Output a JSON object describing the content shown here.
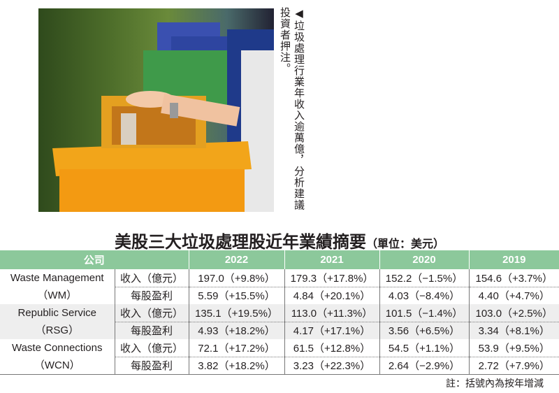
{
  "photo": {
    "description_icon": "recycling-bins-photo"
  },
  "caption": "◀垃圾處理行業年收入逾萬億，分析建議投資者押注。",
  "title": "美股三大垃圾處理股近年業績摘要",
  "unit": "（單位：美元）",
  "table": {
    "headers": [
      "公司",
      "2022",
      "2021",
      "2020",
      "2019"
    ],
    "rows": [
      {
        "company": "Waste Management",
        "ticker": "（WM）",
        "metrics": [
          {
            "label": "收入（億元）",
            "values": [
              "197.0（+9.8%）",
              "179.3（+17.8%）",
              "152.2（−1.5%）",
              "154.6（+3.7%）"
            ]
          },
          {
            "label": "每股盈利",
            "values": [
              "5.59（+15.5%）",
              "4.84（+20.1%）",
              "4.03（−8.4%）",
              "4.40（+4.7%）"
            ]
          }
        ]
      },
      {
        "company": "Republic Service",
        "ticker": "（RSG）",
        "metrics": [
          {
            "label": "收入（億元）",
            "values": [
              "135.1（+19.5%）",
              "113.0（+11.3%）",
              "101.5（−1.4%）",
              "103.0（+2.5%）"
            ]
          },
          {
            "label": "每股盈利",
            "values": [
              "4.93（+18.2%）",
              "4.17（+17.1%）",
              "3.56（+6.5%）",
              "3.34（+8.1%）"
            ]
          }
        ]
      },
      {
        "company": "Waste Connections",
        "ticker": "（WCN）",
        "metrics": [
          {
            "label": "收入（億元）",
            "values": [
              "72.1（+17.2%）",
              "61.5（+12.8%）",
              "54.5（+1.1%）",
              "53.9（+9.5%）"
            ]
          },
          {
            "label": "每股盈利",
            "values": [
              "3.82（+18.2%）",
              "3.23（+22.3%）",
              "2.64（−2.9%）",
              "2.72（+7.9%）"
            ]
          }
        ]
      }
    ]
  },
  "note": "註：括號內為按年增減",
  "colors": {
    "header": "#8cc89b",
    "shaded": "#eeeeee"
  }
}
